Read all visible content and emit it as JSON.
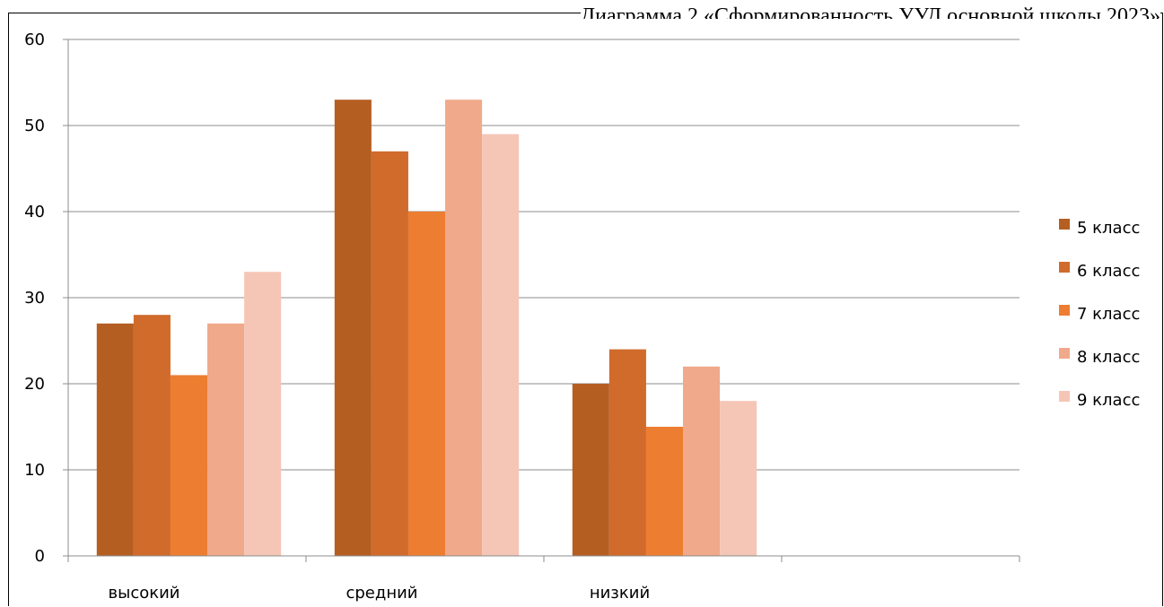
{
  "chart_data": {
    "type": "bar",
    "title": "Диаграмма 2 «Сформированность УУД основной школы 2023»",
    "categories": [
      "высокий",
      "средний",
      "низкий",
      ""
    ],
    "series": [
      {
        "name": "5 класс",
        "values": [
          27,
          53,
          20,
          null
        ],
        "color": "#b55e22"
      },
      {
        "name": "6 класс",
        "values": [
          28,
          47,
          24,
          null
        ],
        "color": "#d06b2c"
      },
      {
        "name": "7 класс",
        "values": [
          21,
          40,
          15,
          null
        ],
        "color": "#ed7d31"
      },
      {
        "name": "8 класс",
        "values": [
          27,
          53,
          22,
          null
        ],
        "color": "#f0a98a"
      },
      {
        "name": "9 класс",
        "values": [
          33,
          49,
          18,
          null
        ],
        "color": "#f5c6b6"
      }
    ],
    "ylim": [
      0,
      60
    ],
    "yticks": [
      0,
      10,
      20,
      30,
      40,
      50,
      60
    ],
    "xlabel": "",
    "ylabel": "",
    "grid": true,
    "legend": "right"
  }
}
